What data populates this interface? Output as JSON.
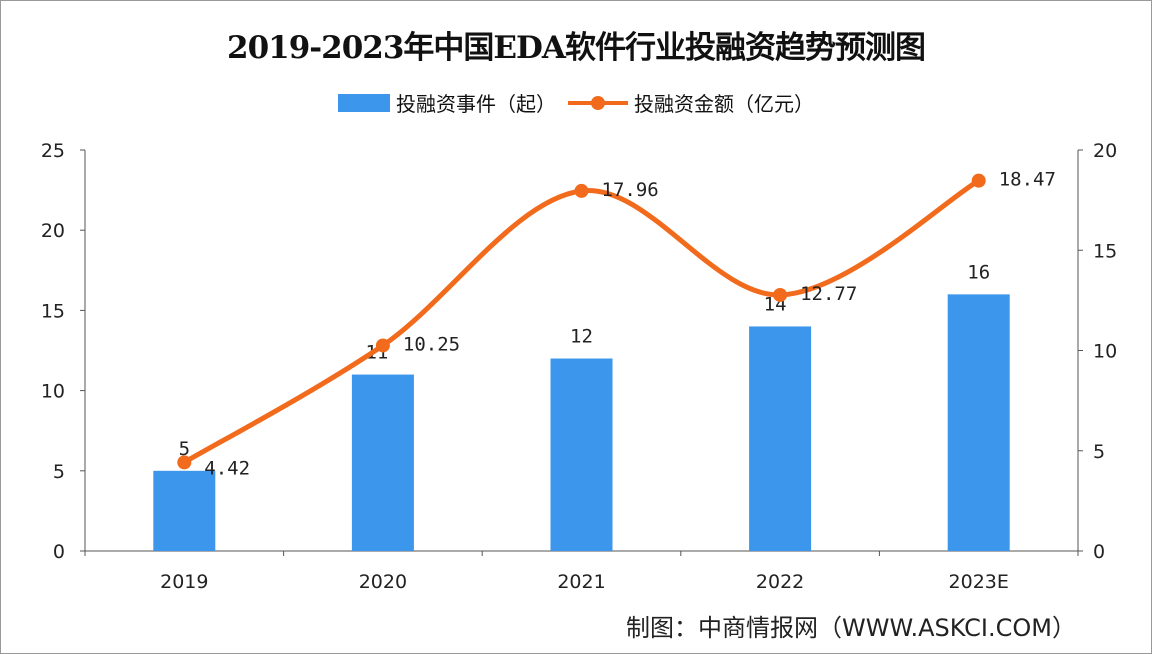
{
  "chart_data": {
    "type": "bar+line",
    "title": "2019-2023年中国EDA软件行业投融资趋势预测图",
    "categories": [
      "2019",
      "2020",
      "2021",
      "2022",
      "2023E"
    ],
    "series": [
      {
        "name": "投融资事件（起）",
        "type": "bar",
        "axis": "left",
        "values": [
          5,
          11,
          12,
          14,
          16
        ],
        "color": "#3b96ec"
      },
      {
        "name": "投融资金额（亿元）",
        "type": "line",
        "axis": "right",
        "values": [
          4.42,
          10.25,
          17.96,
          12.77,
          18.47
        ],
        "color": "#f26b1d"
      }
    ],
    "left_axis": {
      "ylim": [
        0,
        25
      ],
      "ticks": [
        0,
        5,
        10,
        15,
        20,
        25
      ]
    },
    "right_axis": {
      "ylim": [
        0,
        20
      ],
      "ticks": [
        0,
        5,
        10,
        15,
        20
      ]
    },
    "legend": "top-center",
    "grid": false
  },
  "source": "制图：中商情报网（WWW.ASKCI.COM）"
}
